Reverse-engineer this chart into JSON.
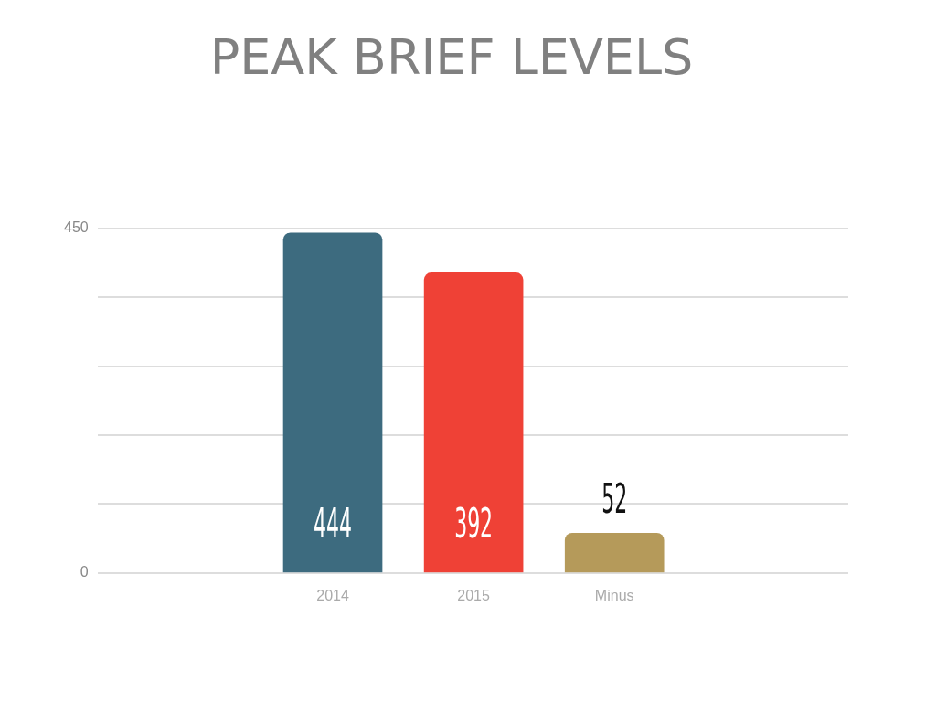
{
  "chart_data": {
    "type": "bar",
    "title": "PEAK BRIEF LEVELS",
    "categories": [
      "2014",
      "2015",
      "Minus"
    ],
    "values": [
      444,
      392,
      52
    ],
    "colors": [
      "#3d6b7f",
      "#ef4136",
      "#b59a5a"
    ],
    "ylim": [
      0,
      450
    ],
    "yticks": [
      {
        "value": 0,
        "label": "0"
      },
      {
        "value": 90,
        "label": null
      },
      {
        "value": 180,
        "label": null
      },
      {
        "value": 270,
        "label": null
      },
      {
        "value": 360,
        "label": null
      },
      {
        "value": 450,
        "label": "450"
      }
    ],
    "grid": "y",
    "data_labels": true
  }
}
